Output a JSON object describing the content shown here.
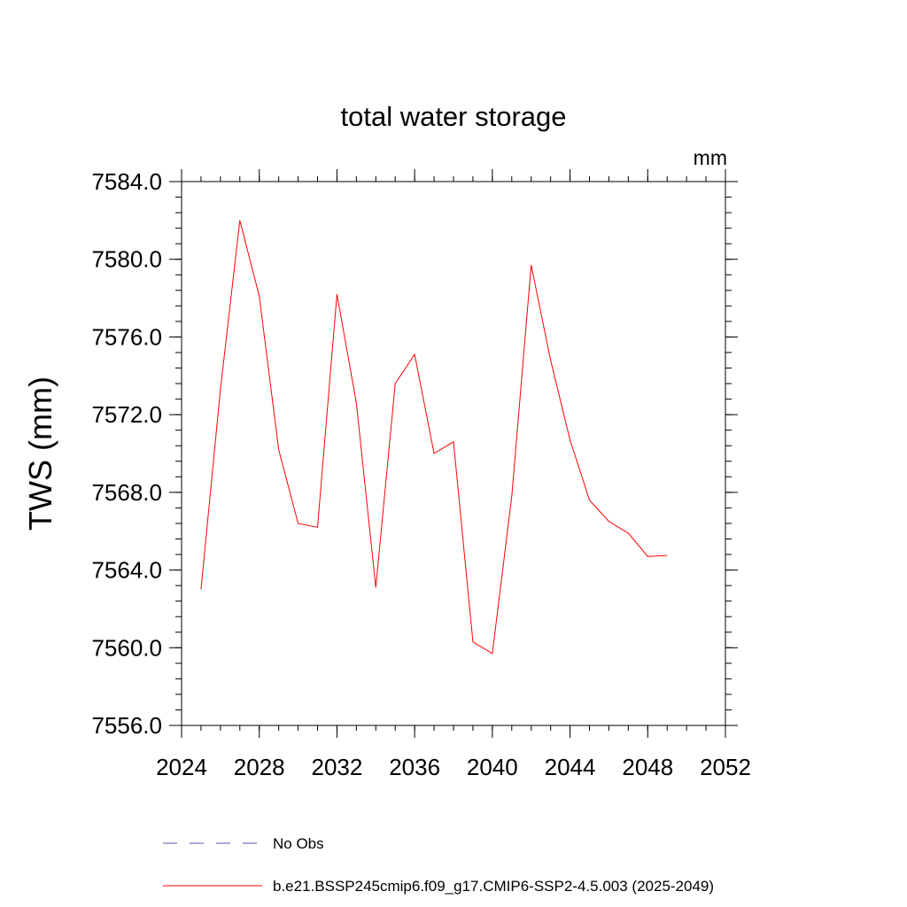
{
  "chart_data": {
    "type": "line",
    "title": "total water storage",
    "units_label": "mm",
    "ylabel": "TWS  (mm)",
    "xlabel": "",
    "xlim": [
      2024,
      2052
    ],
    "ylim": [
      7556,
      7584
    ],
    "x_ticks": [
      2024,
      2028,
      2032,
      2036,
      2040,
      2044,
      2048,
      2052
    ],
    "x_tick_labels": [
      "2024",
      "2028",
      "2032",
      "2036",
      "2040",
      "2044",
      "2048",
      "2052"
    ],
    "y_ticks": [
      7556,
      7560,
      7564,
      7568,
      7572,
      7576,
      7580,
      7584
    ],
    "y_tick_labels": [
      "7556.0",
      "7560.0",
      "7564.0",
      "7568.0",
      "7572.0",
      "7576.0",
      "7580.0",
      "7584.0"
    ],
    "x_minor_step": 1,
    "y_minor_step": 0.8,
    "grid": false,
    "series": [
      {
        "name": "b.e21.BSSP245cmip6.f09_g17.CMIP6-SSP2-4.5.003 (2025-2049)",
        "color": "#ff0000",
        "style": "solid",
        "x": [
          2025,
          2026,
          2027,
          2028,
          2029,
          2030,
          2031,
          2032,
          2033,
          2034,
          2035,
          2036,
          2037,
          2038,
          2039,
          2040,
          2041,
          2042,
          2043,
          2044,
          2045,
          2046,
          2047,
          2048,
          2049
        ],
        "values": [
          7563.0,
          7573.3,
          7582.0,
          7578.1,
          7570.2,
          7566.4,
          7566.2,
          7578.2,
          7572.6,
          7563.1,
          7573.6,
          7575.1,
          7570.0,
          7570.6,
          7560.3,
          7559.7,
          7567.8,
          7579.7,
          7574.8,
          7570.7,
          7567.6,
          7566.5,
          7565.9,
          7564.7,
          7564.75
        ]
      }
    ],
    "legend": {
      "placement": "bottom-left",
      "entries": [
        {
          "label": "No Obs",
          "color": "#5555bb",
          "style": "dashed"
        },
        {
          "label": "b.e21.BSSP245cmip6.f09_g17.CMIP6-SSP2-4.5.003 (2025-2049)",
          "color": "#ff0000",
          "style": "solid"
        }
      ]
    }
  }
}
